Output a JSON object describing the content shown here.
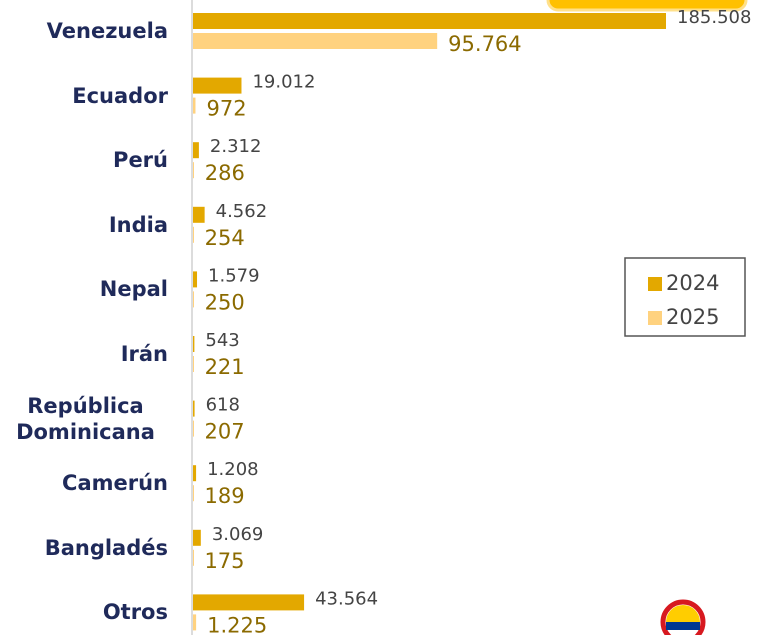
{
  "chart_data": {
    "type": "bar",
    "orientation": "horizontal",
    "categories": [
      "Venezuela",
      "Ecuador",
      "Perú",
      "India",
      "Nepal",
      "Irán",
      "República Dominicana",
      "Camerún",
      "Bangladés",
      "Otros"
    ],
    "series": [
      {
        "name": "2024",
        "color": "#e3a800",
        "values": [
          185508,
          19012,
          2312,
          4562,
          1579,
          543,
          618,
          1208,
          3069,
          43564
        ],
        "value_labels": [
          "185.508",
          "19.012",
          "2.312",
          "4.562",
          "1.579",
          "543",
          "618",
          "1.208",
          "3.069",
          "43.564"
        ]
      },
      {
        "name": "2025",
        "color": "#ffd27f",
        "values": [
          95764,
          972,
          286,
          254,
          250,
          221,
          207,
          189,
          175,
          1225
        ],
        "value_labels": [
          "95.764",
          "972",
          "286",
          "254",
          "250",
          "221",
          "207",
          "189",
          "175",
          "1.225"
        ]
      }
    ],
    "legend": "right"
  }
}
